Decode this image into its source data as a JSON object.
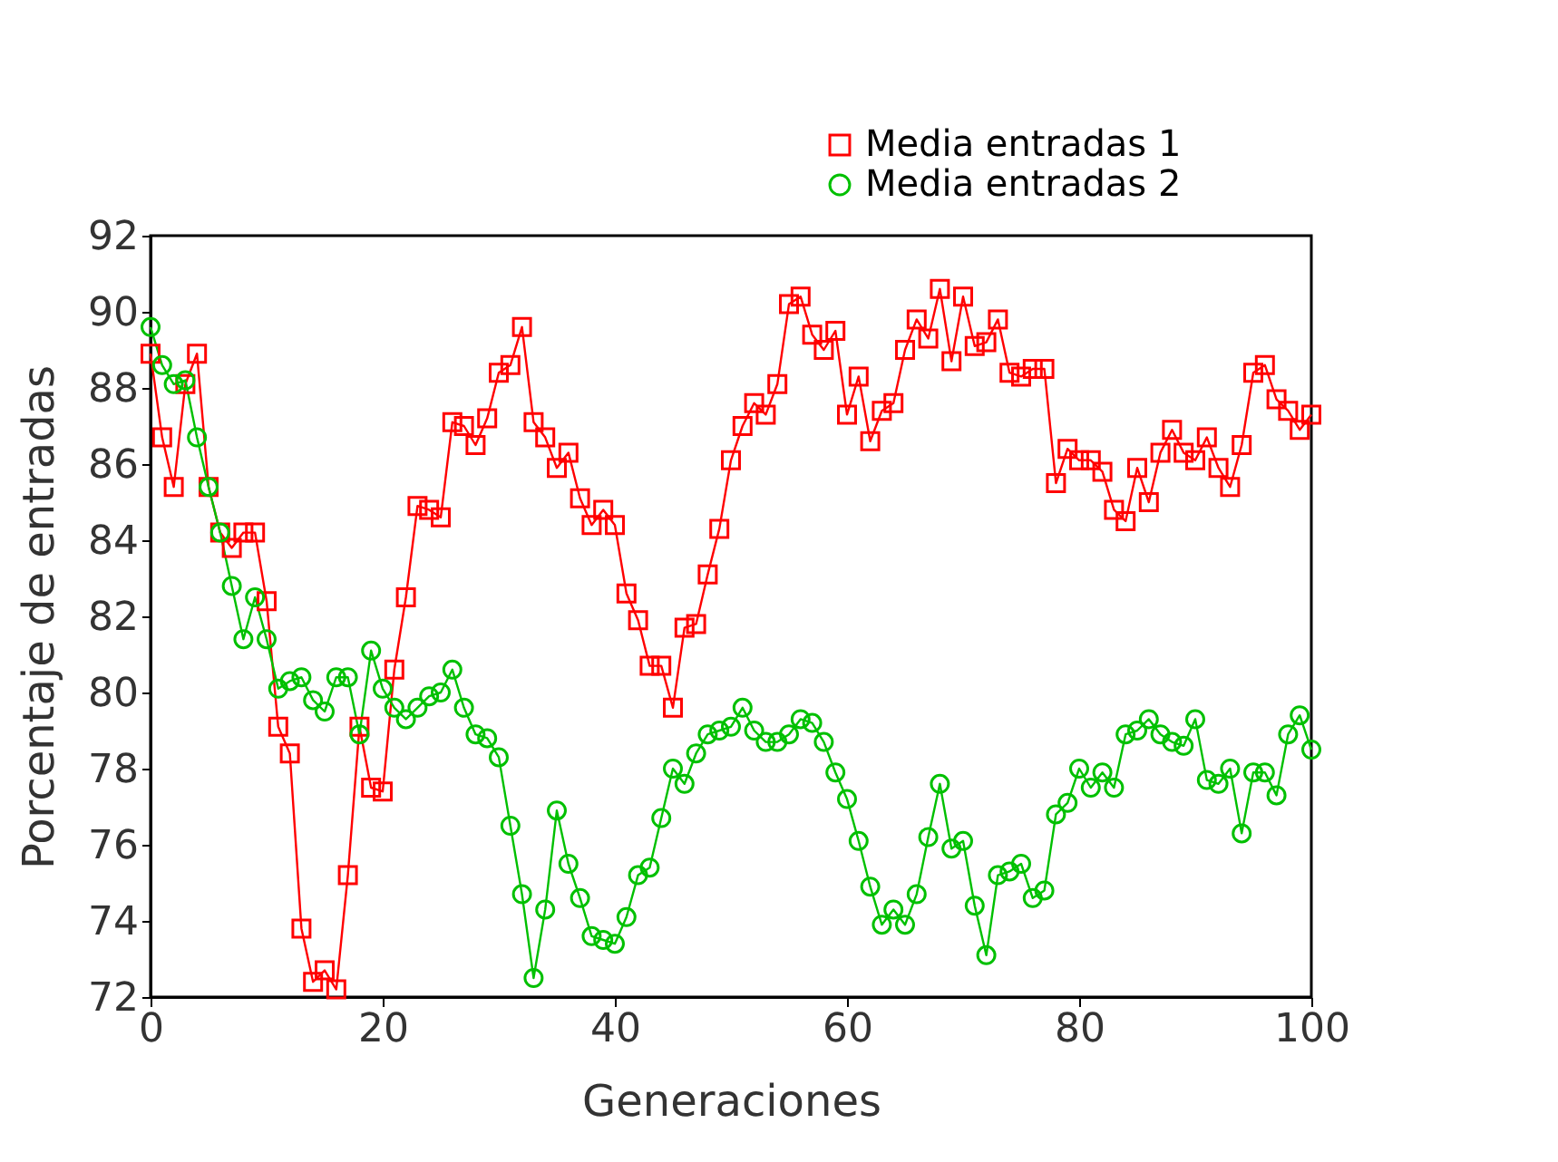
{
  "chart_data": {
    "type": "line",
    "xlabel": "Generaciones",
    "ylabel": "Porcentaje de entradas",
    "x": [
      0,
      1,
      2,
      3,
      4,
      5,
      6,
      7,
      8,
      9,
      10,
      11,
      12,
      13,
      14,
      15,
      16,
      17,
      18,
      19,
      20,
      21,
      22,
      23,
      24,
      25,
      26,
      27,
      28,
      29,
      30,
      31,
      32,
      33,
      34,
      35,
      36,
      37,
      38,
      39,
      40,
      41,
      42,
      43,
      44,
      45,
      46,
      47,
      48,
      49,
      50,
      51,
      52,
      53,
      54,
      55,
      56,
      57,
      58,
      59,
      60,
      61,
      62,
      63,
      64,
      65,
      66,
      67,
      68,
      69,
      70,
      71,
      72,
      73,
      74,
      75,
      76,
      77,
      78,
      79,
      80,
      81,
      82,
      83,
      84,
      85,
      86,
      87,
      88,
      89,
      90,
      91,
      92,
      93,
      94,
      95,
      96,
      97,
      98,
      99,
      100
    ],
    "series": [
      {
        "name": "Media entradas 1",
        "color": "#ff0000",
        "marker": "square",
        "values": [
          88.9,
          86.7,
          85.4,
          88.1,
          88.9,
          85.4,
          84.2,
          83.8,
          84.2,
          84.2,
          82.4,
          79.1,
          78.4,
          73.8,
          72.4,
          72.7,
          72.2,
          75.2,
          79.1,
          77.5,
          77.4,
          80.6,
          82.5,
          84.9,
          84.8,
          84.6,
          87.1,
          87.0,
          86.5,
          87.2,
          88.4,
          88.6,
          89.6,
          87.1,
          86.7,
          85.9,
          86.3,
          85.1,
          84.4,
          84.8,
          84.4,
          82.6,
          81.9,
          80.7,
          80.7,
          79.6,
          81.7,
          81.8,
          83.1,
          84.3,
          86.1,
          87.0,
          87.6,
          87.3,
          88.1,
          90.2,
          90.4,
          89.4,
          89.0,
          89.5,
          87.3,
          88.3,
          86.6,
          87.4,
          87.6,
          89.0,
          89.8,
          89.3,
          90.6,
          88.7,
          90.4,
          89.1,
          89.2,
          89.8,
          88.4,
          88.3,
          88.5,
          88.5,
          85.5,
          86.4,
          86.1,
          86.1,
          85.8,
          84.8,
          84.5,
          85.9,
          85.0,
          86.3,
          86.9,
          86.3,
          86.1,
          86.7,
          85.9,
          85.4,
          86.5,
          88.4,
          88.6,
          87.7,
          87.4,
          86.9,
          87.3
        ]
      },
      {
        "name": "Media entradas 2",
        "color": "#00c000",
        "marker": "circle",
        "values": [
          89.6,
          88.6,
          88.1,
          88.2,
          86.7,
          85.4,
          84.2,
          82.8,
          81.4,
          82.5,
          81.4,
          80.1,
          80.3,
          80.4,
          79.8,
          79.5,
          80.4,
          80.4,
          78.9,
          81.1,
          80.1,
          79.6,
          79.3,
          79.6,
          79.9,
          80.0,
          80.6,
          79.6,
          78.9,
          78.8,
          78.3,
          76.5,
          74.7,
          72.5,
          74.3,
          76.9,
          75.5,
          74.6,
          73.6,
          73.5,
          73.4,
          74.1,
          75.2,
          75.4,
          76.7,
          78.0,
          77.6,
          78.4,
          78.9,
          79.0,
          79.1,
          79.6,
          79.0,
          78.7,
          78.7,
          78.9,
          79.3,
          79.2,
          78.7,
          77.9,
          77.2,
          76.1,
          74.9,
          73.9,
          74.3,
          73.9,
          74.7,
          76.2,
          77.6,
          75.9,
          76.1,
          74.4,
          73.1,
          75.2,
          75.3,
          75.5,
          74.6,
          74.8,
          76.8,
          77.1,
          78.0,
          77.5,
          77.9,
          77.5,
          78.9,
          79.0,
          79.3,
          78.9,
          78.7,
          78.6,
          79.3,
          77.7,
          77.6,
          78.0,
          76.3,
          77.9,
          77.9,
          77.3,
          78.9,
          79.4,
          78.5
        ]
      }
    ],
    "xlim": [
      0,
      100
    ],
    "xticks": [
      0,
      20,
      40,
      60,
      80,
      100
    ],
    "ylim": [
      72,
      92
    ],
    "yticks": [
      72,
      74,
      76,
      78,
      80,
      82,
      84,
      86,
      88,
      90,
      92
    ],
    "legend": "top right",
    "grid": false
  }
}
